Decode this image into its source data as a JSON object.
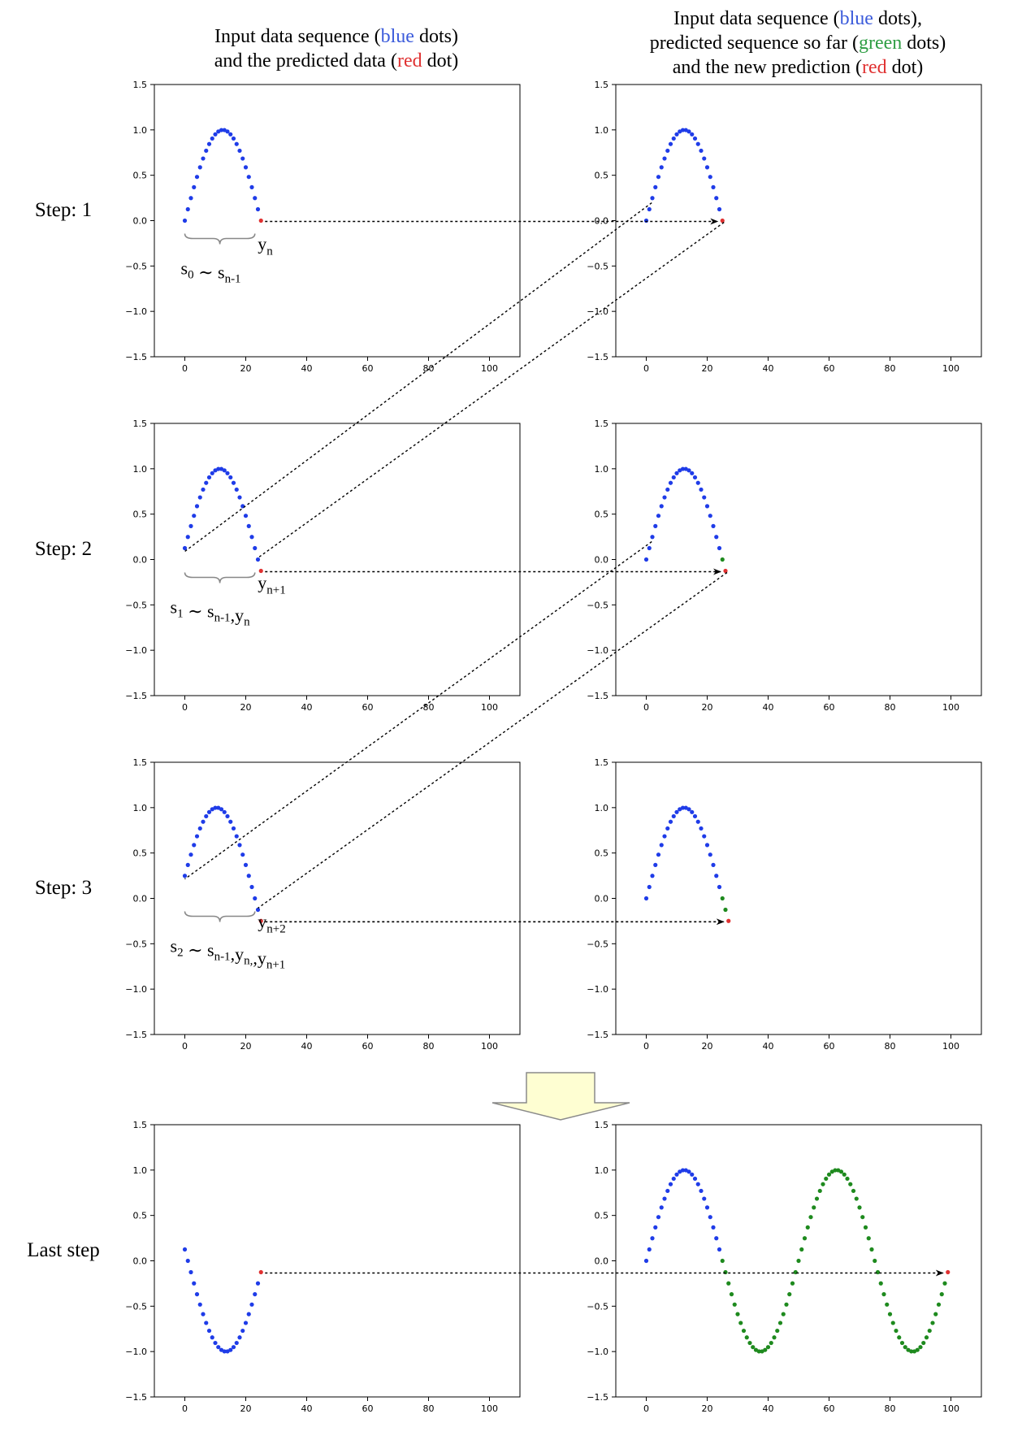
{
  "titles": {
    "left": [
      [
        {
          "t": "Input data sequence ("
        },
        {
          "t": "blue",
          "c": "blue"
        },
        {
          "t": " dots)"
        }
      ],
      [
        {
          "t": "and the predicted data ("
        },
        {
          "t": "red",
          "c": "red"
        },
        {
          "t": " dot)"
        }
      ]
    ],
    "right": [
      [
        {
          "t": "Input data sequence ("
        },
        {
          "t": "blue",
          "c": "blue"
        },
        {
          "t": " dots),"
        }
      ],
      [
        {
          "t": "predicted sequence so far ("
        },
        {
          "t": "green",
          "c": "green"
        },
        {
          "t": " dots)"
        }
      ],
      [
        {
          "t": "and the new prediction ("
        },
        {
          "t": "red",
          "c": "red"
        },
        {
          "t": " dot)"
        }
      ]
    ]
  },
  "title_colors": {
    "blue": "#3b5bdb",
    "red": "#e03131",
    "green": "#2f9e44"
  },
  "steps": [
    {
      "label": "Step: 1",
      "offset": 0,
      "green_count": 0,
      "left_annot": [
        {
          "t": "s",
          "s": "0"
        },
        {
          "t": " ∼ "
        },
        {
          "t": "s",
          "s": "n-1"
        }
      ],
      "pred_label": {
        "t": "y",
        "s": "n"
      }
    },
    {
      "label": "Step: 2",
      "offset": 1,
      "green_count": 1,
      "left_annot": [
        {
          "t": "s",
          "s": "1"
        },
        {
          "t": " ∼ s",
          "s": "n-1"
        },
        {
          "t": ",y",
          "s": "n"
        }
      ],
      "pred_label": {
        "t": "y",
        "s": "n+1"
      }
    },
    {
      "label": "Step: 3",
      "offset": 2,
      "green_count": 2,
      "left_annot": [
        {
          "t": "s",
          "s": "2"
        },
        {
          "t": " ∼ s",
          "s": "n-1"
        },
        {
          "t": ",y",
          "s": "n,"
        },
        {
          "t": ",y",
          "s": "n+1"
        }
      ],
      "pred_label": {
        "t": "y",
        "s": "n+2"
      }
    },
    {
      "label": "Last step",
      "offset": 74,
      "green_count": 74,
      "left_annot": [],
      "pred_label": null
    }
  ],
  "chart_data": {
    "type": "scatter",
    "xlim": [
      -10,
      110
    ],
    "ylim": [
      -1.5,
      1.5
    ],
    "xticks": [
      0,
      20,
      40,
      60,
      80,
      100
    ],
    "yticks": [
      1.5,
      1.0,
      0.5,
      0.0,
      -0.5,
      -1.0,
      -1.5
    ],
    "ytick_labels": [
      "1.5",
      "1.0",
      "0.5",
      "0.0",
      "−0.5",
      "−1.0",
      "−1.5"
    ],
    "series_colors": {
      "input": "#1f3ce8",
      "predicted": "#1e8a1e",
      "new": "#e03131"
    },
    "window_length": 25,
    "signal": "sin(2*pi*t/50)"
  }
}
